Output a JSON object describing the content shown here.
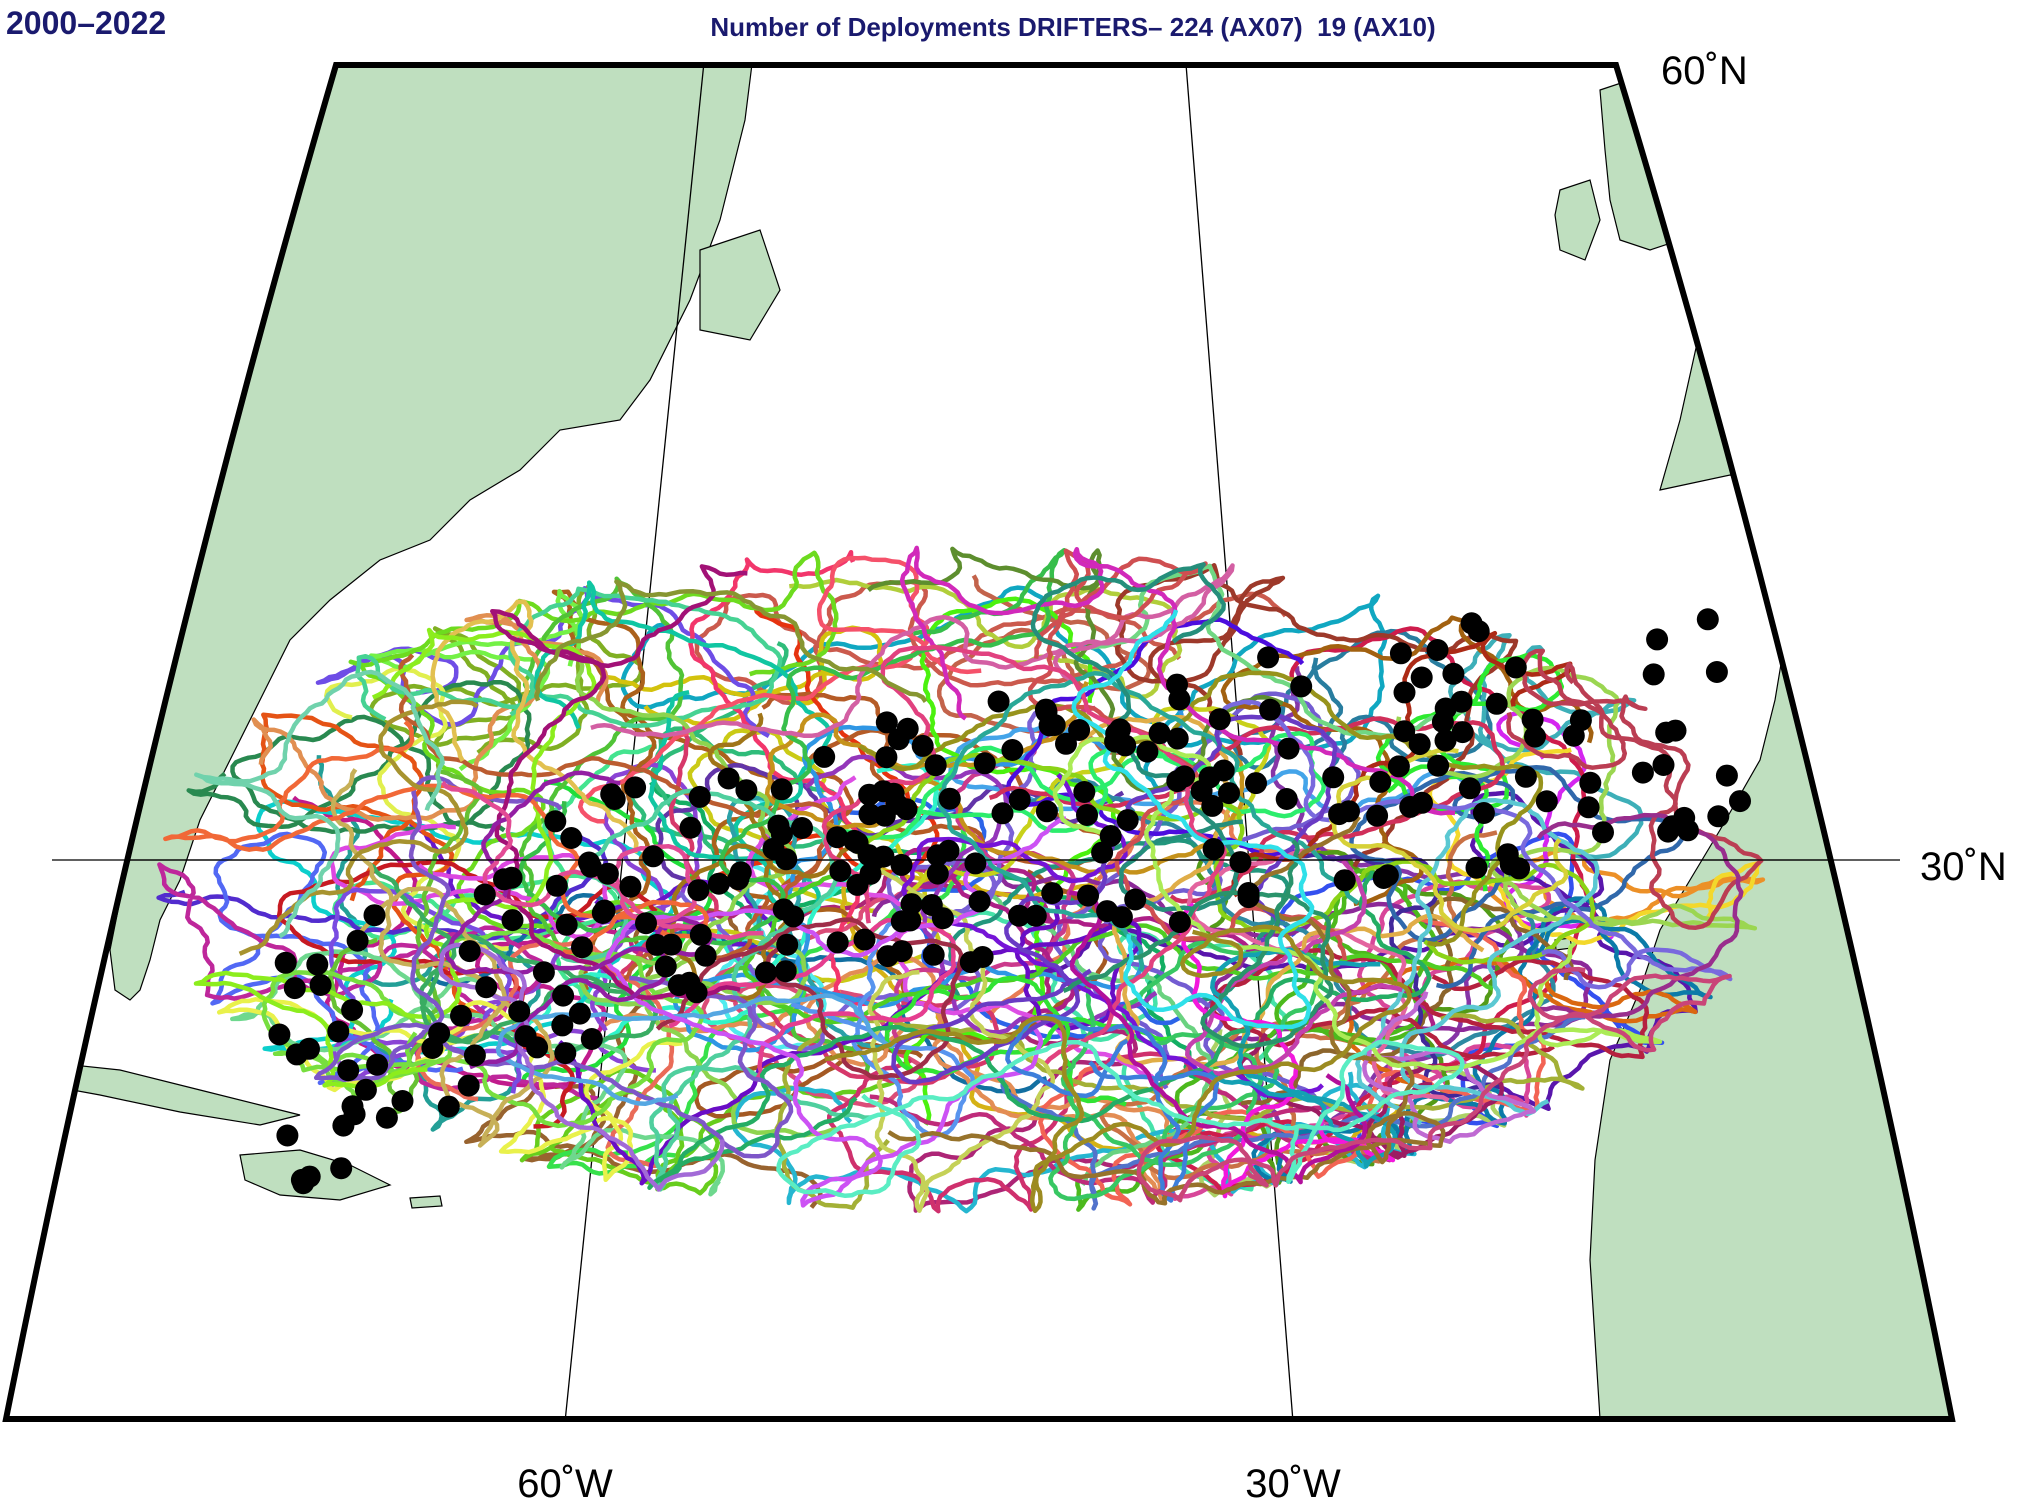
{
  "header": {
    "period": "2000–2022",
    "title": "Number of Deployments DRIFTERS– 224 (AX07)  19 (AX10)"
  },
  "map": {
    "lat_labels": [
      "60˚N",
      "30˚N"
    ],
    "lon_labels": [
      "60˚W",
      "30˚W"
    ]
  }
}
